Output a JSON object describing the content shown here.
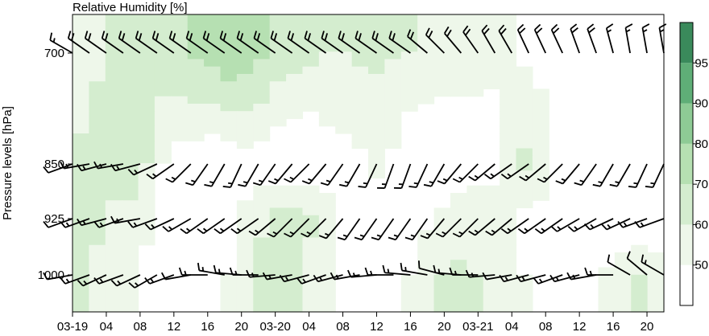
{
  "chart_data": {
    "type": "heatmap",
    "title": "Relative Humidity [%]",
    "ylabel": "Pressure levels [hPa]",
    "xlabel": "",
    "x_tick_labels": [
      "03-19",
      "04",
      "08",
      "12",
      "16",
      "20",
      "03-20",
      "04",
      "08",
      "12",
      "16",
      "20",
      "03-21",
      "04",
      "08",
      "12",
      "16",
      "20"
    ],
    "x_tick_hours": [
      0,
      4,
      8,
      12,
      16,
      20,
      24,
      28,
      32,
      36,
      40,
      44,
      48,
      52,
      56,
      60,
      64,
      68
    ],
    "xlim": [
      0,
      70
    ],
    "y_levels": [
      700,
      850,
      925,
      1000
    ],
    "y_tick_labels": [
      "700",
      "850",
      "925",
      "1000"
    ],
    "colorbar": {
      "ticks": [
        "50",
        "60",
        "70",
        "80",
        "90",
        "95"
      ],
      "bounds": [
        40,
        50,
        60,
        70,
        80,
        90,
        95,
        100
      ],
      "colors": [
        "#ffffff",
        "#eef7ea",
        "#d4edcf",
        "#b6e0b2",
        "#8ecb95",
        "#5fae77",
        "#3a8a5b"
      ]
    },
    "series": [
      {
        "level": 700,
        "rh": [
          55,
          58,
          60,
          62,
          64,
          66,
          68,
          72,
          75,
          78,
          76,
          72,
          66,
          64,
          62,
          60,
          60,
          62,
          62,
          61,
          60,
          58,
          56,
          55,
          54,
          52,
          50,
          48,
          46,
          45,
          44,
          43,
          42,
          42,
          41,
          40
        ]
      },
      {
        "level": 850,
        "rh": [
          62,
          66,
          64,
          70,
          60,
          50,
          46,
          44,
          42,
          44,
          46,
          44,
          42,
          40,
          40,
          44,
          46,
          48,
          52,
          48,
          42,
          40,
          40,
          42,
          44,
          46,
          52,
          62,
          58,
          48,
          44,
          42,
          40,
          40,
          40,
          40
        ]
      },
      {
        "level": 925,
        "rh": [
          68,
          62,
          58,
          56,
          52,
          48,
          44,
          44,
          44,
          46,
          52,
          58,
          64,
          66,
          62,
          56,
          50,
          46,
          44,
          44,
          46,
          48,
          52,
          56,
          58,
          56,
          52,
          48,
          46,
          44,
          42,
          40,
          40,
          40,
          40,
          40
        ]
      },
      {
        "level": 1000,
        "rh": [
          62,
          58,
          54,
          52,
          48,
          46,
          44,
          44,
          46,
          50,
          58,
          64,
          66,
          62,
          56,
          50,
          46,
          44,
          44,
          46,
          50,
          56,
          60,
          62,
          60,
          56,
          52,
          50,
          48,
          46,
          46,
          48,
          52,
          56,
          60,
          58
        ]
      }
    ],
    "wind_barbs": {
      "hours": [
        0,
        2,
        4,
        6,
        8,
        10,
        12,
        14,
        16,
        18,
        20,
        22,
        24,
        26,
        28,
        30,
        32,
        34,
        36,
        38,
        40,
        42,
        44,
        46,
        48,
        50,
        52,
        54,
        56,
        58,
        60,
        62,
        64,
        66,
        68,
        70
      ],
      "levels": [
        {
          "level": 700,
          "direction_deg": [
            300,
            305,
            305,
            305,
            305,
            305,
            305,
            305,
            305,
            305,
            305,
            305,
            305,
            305,
            305,
            305,
            305,
            305,
            305,
            305,
            305,
            310,
            315,
            320,
            325,
            330,
            330,
            335,
            335,
            335,
            340,
            340,
            345,
            350,
            350,
            350
          ],
          "speed_kt": [
            15,
            20,
            20,
            20,
            20,
            20,
            20,
            20,
            20,
            20,
            20,
            20,
            20,
            20,
            20,
            20,
            20,
            20,
            20,
            20,
            20,
            20,
            20,
            20,
            20,
            20,
            20,
            20,
            20,
            20,
            20,
            20,
            15,
            15,
            15,
            15
          ]
        },
        {
          "level": 850,
          "direction_deg": [
            250,
            260,
            255,
            260,
            255,
            245,
            235,
            225,
            215,
            210,
            205,
            210,
            215,
            220,
            225,
            220,
            215,
            210,
            205,
            200,
            200,
            205,
            210,
            220,
            225,
            230,
            235,
            235,
            230,
            225,
            220,
            215,
            210,
            210,
            205,
            205
          ],
          "speed_kt": [
            10,
            15,
            15,
            15,
            15,
            15,
            15,
            15,
            15,
            15,
            15,
            15,
            15,
            15,
            15,
            15,
            15,
            15,
            15,
            15,
            15,
            15,
            15,
            15,
            15,
            15,
            15,
            15,
            15,
            15,
            15,
            15,
            15,
            15,
            15,
            15
          ]
        },
        {
          "level": 925,
          "direction_deg": [
            250,
            250,
            255,
            250,
            260,
            250,
            245,
            240,
            235,
            235,
            235,
            235,
            230,
            225,
            225,
            225,
            220,
            215,
            215,
            215,
            215,
            215,
            220,
            225,
            225,
            230,
            230,
            235,
            235,
            235,
            240,
            240,
            245,
            245,
            250,
            250
          ],
          "speed_kt": [
            10,
            15,
            15,
            15,
            15,
            15,
            15,
            15,
            15,
            15,
            15,
            15,
            15,
            15,
            15,
            15,
            15,
            15,
            15,
            15,
            15,
            15,
            15,
            15,
            15,
            15,
            15,
            15,
            15,
            15,
            15,
            15,
            15,
            15,
            15,
            15
          ]
        },
        {
          "level": 1000,
          "direction_deg": [
            260,
            250,
            245,
            250,
            245,
            240,
            250,
            260,
            270,
            280,
            275,
            270,
            265,
            260,
            255,
            250,
            255,
            260,
            265,
            270,
            275,
            280,
            285,
            275,
            270,
            265,
            260,
            255,
            255,
            250,
            255,
            260,
            270,
            300,
            310,
            300
          ],
          "speed_kt": [
            10,
            15,
            15,
            15,
            15,
            15,
            15,
            10,
            15,
            15,
            15,
            15,
            15,
            15,
            15,
            15,
            15,
            15,
            15,
            15,
            15,
            15,
            10,
            15,
            15,
            15,
            10,
            15,
            15,
            15,
            15,
            15,
            15,
            10,
            10,
            15
          ]
        }
      ]
    },
    "colors": {
      "axis": "#000000",
      "barb": "#000000"
    }
  }
}
